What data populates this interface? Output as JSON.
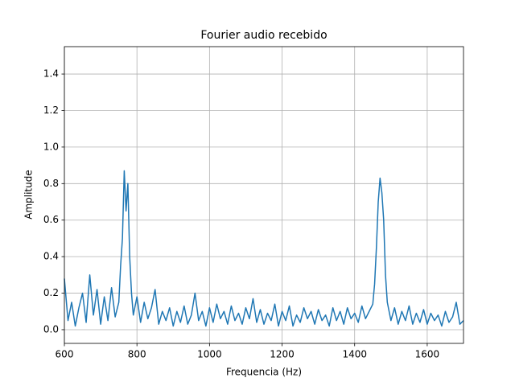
{
  "chart_data": {
    "type": "line",
    "title": "Fourier audio recebido",
    "xlabel": "Frequencia (Hz)",
    "ylabel": "Amplitude",
    "x": [
      600,
      610,
      620,
      630,
      640,
      650,
      660,
      670,
      680,
      690,
      700,
      710,
      720,
      730,
      740,
      750,
      755,
      760,
      765,
      770,
      775,
      780,
      785,
      790,
      800,
      810,
      820,
      830,
      840,
      850,
      860,
      870,
      880,
      890,
      900,
      910,
      920,
      930,
      940,
      950,
      960,
      970,
      980,
      990,
      1000,
      1010,
      1020,
      1030,
      1040,
      1050,
      1060,
      1070,
      1080,
      1090,
      1100,
      1110,
      1120,
      1130,
      1140,
      1150,
      1160,
      1170,
      1180,
      1190,
      1200,
      1210,
      1220,
      1230,
      1240,
      1250,
      1260,
      1270,
      1280,
      1290,
      1300,
      1310,
      1320,
      1330,
      1340,
      1350,
      1360,
      1370,
      1380,
      1390,
      1400,
      1410,
      1420,
      1430,
      1440,
      1450,
      1455,
      1460,
      1465,
      1470,
      1475,
      1480,
      1485,
      1490,
      1500,
      1510,
      1520,
      1530,
      1540,
      1550,
      1560,
      1570,
      1580,
      1590,
      1600,
      1610,
      1620,
      1630,
      1640,
      1650,
      1660,
      1670,
      1680,
      1690,
      1700
    ],
    "series": [
      {
        "color": "#1f77b4",
        "values": [
          0.28,
          0.05,
          0.15,
          0.02,
          0.12,
          0.2,
          0.04,
          0.3,
          0.08,
          0.22,
          0.03,
          0.18,
          0.05,
          0.23,
          0.07,
          0.15,
          0.35,
          0.5,
          0.87,
          0.65,
          0.8,
          0.4,
          0.2,
          0.08,
          0.18,
          0.04,
          0.15,
          0.06,
          0.12,
          0.22,
          0.03,
          0.1,
          0.05,
          0.12,
          0.02,
          0.1,
          0.04,
          0.13,
          0.03,
          0.08,
          0.2,
          0.05,
          0.1,
          0.02,
          0.12,
          0.04,
          0.14,
          0.06,
          0.1,
          0.03,
          0.13,
          0.05,
          0.09,
          0.03,
          0.12,
          0.06,
          0.17,
          0.04,
          0.11,
          0.03,
          0.09,
          0.05,
          0.14,
          0.02,
          0.1,
          0.05,
          0.13,
          0.02,
          0.08,
          0.04,
          0.12,
          0.06,
          0.1,
          0.03,
          0.11,
          0.05,
          0.08,
          0.02,
          0.12,
          0.05,
          0.1,
          0.03,
          0.12,
          0.06,
          0.09,
          0.04,
          0.13,
          0.06,
          0.1,
          0.14,
          0.25,
          0.45,
          0.7,
          0.83,
          0.75,
          0.6,
          0.3,
          0.15,
          0.05,
          0.12,
          0.03,
          0.1,
          0.05,
          0.13,
          0.03,
          0.09,
          0.04,
          0.11,
          0.03,
          0.09,
          0.05,
          0.08,
          0.02,
          0.1,
          0.04,
          0.07,
          0.15,
          0.03,
          0.05
        ]
      }
    ],
    "xlim": [
      600,
      1700
    ],
    "ylim": [
      -0.075,
      1.55
    ],
    "xticks": [
      600,
      800,
      1000,
      1200,
      1400,
      1600
    ],
    "yticks": [
      {
        "value": 0,
        "label": "0.0"
      },
      0.2,
      0.4,
      0.6,
      0.8,
      {
        "value": 1,
        "label": "1.0"
      },
      1.2,
      1.4
    ],
    "grid": true
  }
}
